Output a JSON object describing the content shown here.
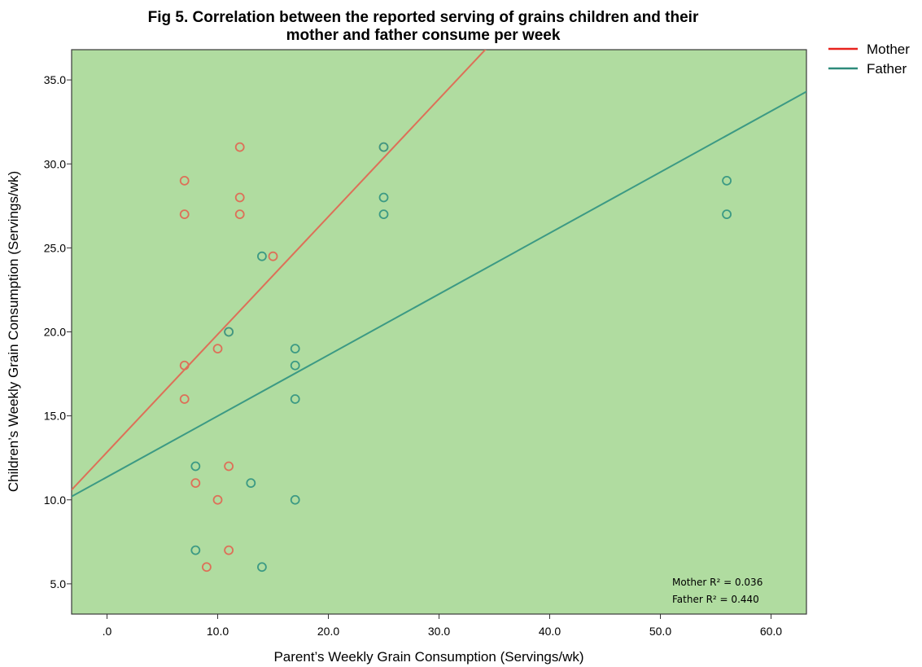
{
  "chart_data": {
    "type": "scatter",
    "title_line1": "Fig 5. Correlation between the reported serving of grains children and their",
    "title_line2": "mother and father consume per week",
    "xlabel": "Parent’s Weekly Grain Consumption (Servings/wk)",
    "ylabel": "Children’s Weekly Grain Consumption (Servings/wk)",
    "xlim": [
      -3.2,
      63.2
    ],
    "ylim": [
      3.2,
      36.8
    ],
    "xticks": [
      0,
      10,
      20,
      30,
      40,
      50,
      60
    ],
    "xtick_labels": [
      ".0",
      "10.0",
      "20.0",
      "30.0",
      "40.0",
      "50.0",
      "60.0"
    ],
    "yticks": [
      5,
      10,
      15,
      20,
      25,
      30,
      35
    ],
    "ytick_labels": [
      "5.0",
      "10.0",
      "15.0",
      "20.0",
      "25.0",
      "30.0",
      "35.0"
    ],
    "grid": false,
    "background_color": "#b0dca0",
    "legend_position": "outside-top-right",
    "series": [
      {
        "name": "Mother",
        "color": "#dd7058",
        "legend_color": "#e8231e",
        "points": [
          [
            7,
            29
          ],
          [
            7,
            27
          ],
          [
            7,
            18
          ],
          [
            7,
            16
          ],
          [
            8,
            11
          ],
          [
            9,
            6
          ],
          [
            10,
            19
          ],
          [
            10,
            10
          ],
          [
            11,
            12
          ],
          [
            11,
            7
          ],
          [
            11,
            20
          ],
          [
            12,
            31
          ],
          [
            12,
            28
          ],
          [
            12,
            27
          ],
          [
            15,
            24.5
          ],
          [
            25,
            31
          ]
        ],
        "fit": {
          "slope": 0.701,
          "intercept": 12.84
        }
      },
      {
        "name": "Father",
        "color": "#3c9a84",
        "legend_color": "#2e8b7a",
        "points": [
          [
            8,
            12
          ],
          [
            8,
            7
          ],
          [
            11,
            20
          ],
          [
            13,
            11
          ],
          [
            14,
            24.5
          ],
          [
            14,
            6
          ],
          [
            17,
            19
          ],
          [
            17,
            18
          ],
          [
            17,
            16
          ],
          [
            17,
            10
          ],
          [
            25,
            31
          ],
          [
            25,
            28
          ],
          [
            25,
            27
          ],
          [
            56,
            29
          ],
          [
            56,
            27
          ]
        ],
        "fit": {
          "slope": 0.363,
          "intercept": 11.36
        }
      }
    ],
    "annotations": [
      {
        "series": "Mother",
        "text": "Mother R² = 0.036"
      },
      {
        "series": "Father",
        "text": "Father R² = 0.440"
      }
    ]
  }
}
